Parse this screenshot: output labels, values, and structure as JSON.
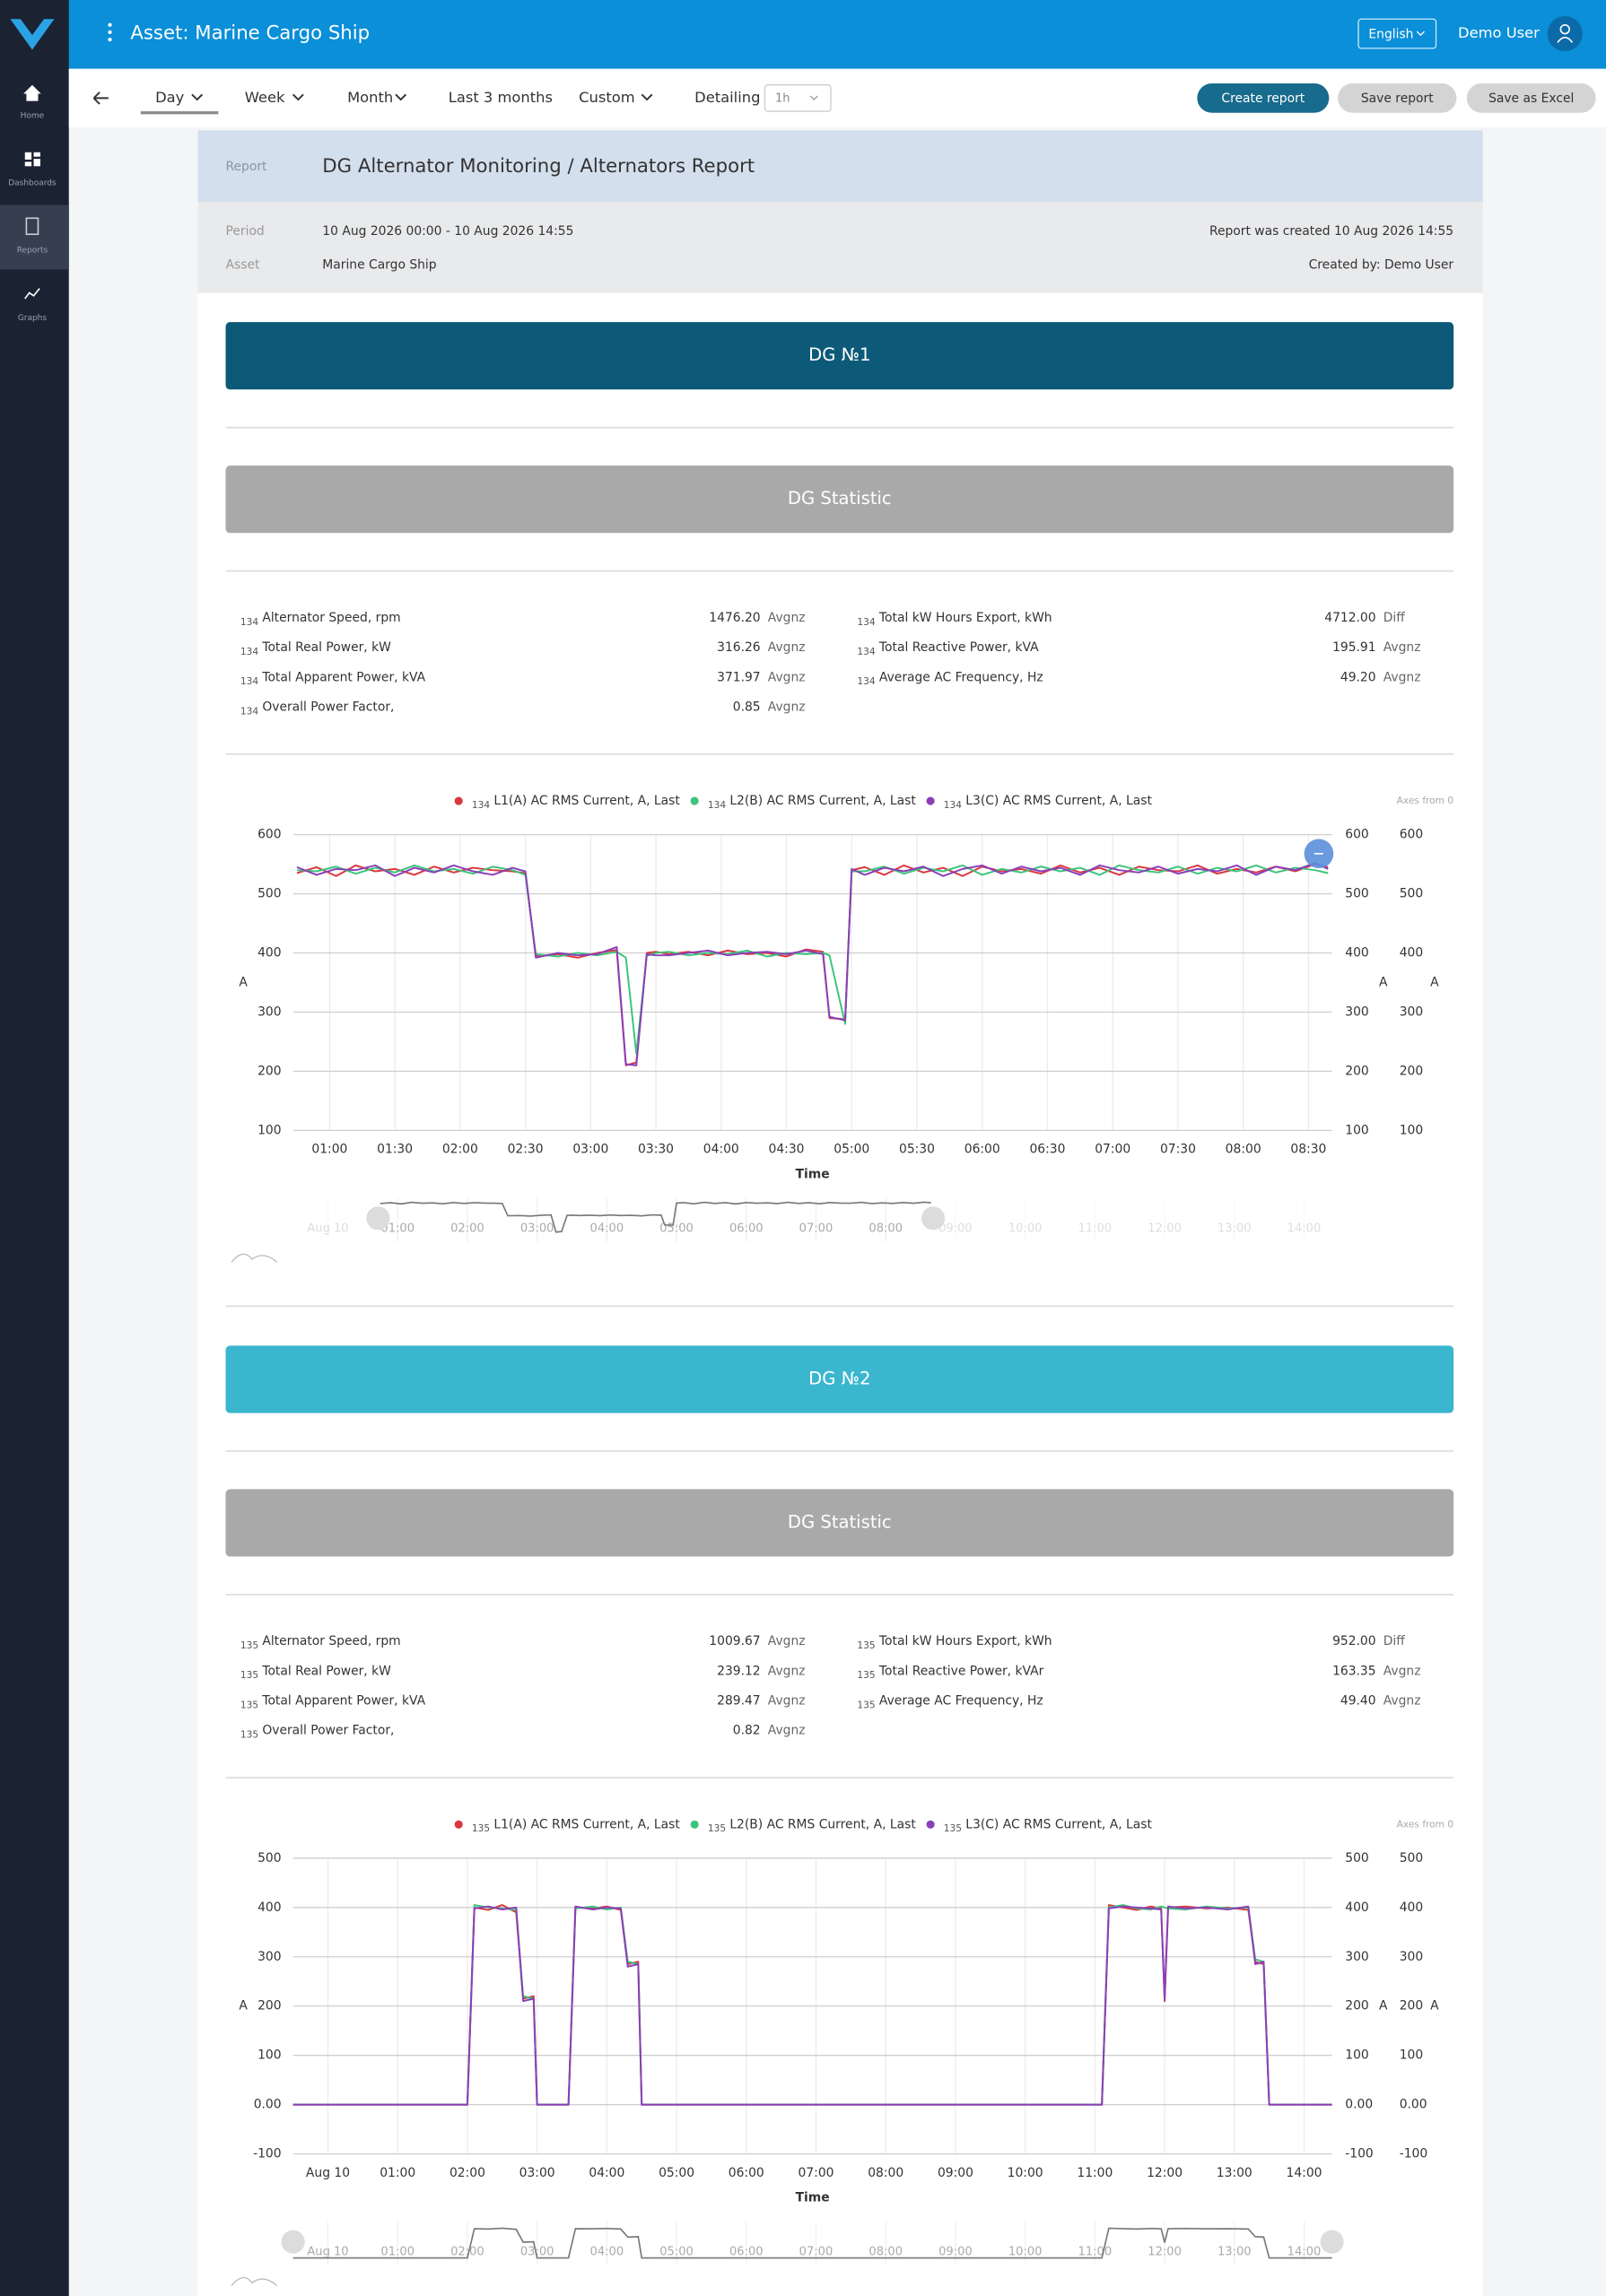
{
  "sidebar": {
    "items": [
      "Home",
      "Dashboards",
      "Reports",
      "Graphs"
    ]
  },
  "header": {
    "title": "Asset: Marine Cargo Ship",
    "language": "English",
    "user": "Demo User"
  },
  "toolbar": {
    "periods": [
      "Day",
      "Week",
      "Month",
      "Last 3 months",
      "Custom"
    ],
    "detailing_label": "Detailing",
    "detailing_value": "1h",
    "buttons": [
      "Create report",
      "Save report",
      "Save as Excel"
    ]
  },
  "report": {
    "label": "Report",
    "title": "DG Alternator Monitoring / Alternators Report",
    "period_label": "Period",
    "period": "10 Aug 2026 00:00 - 10 Aug 2026 14:55",
    "asset_label": "Asset",
    "asset": "Marine Cargo Ship",
    "created": "Report was created 10 Aug 2026 14:55",
    "created_by": "Created by: Demo User"
  },
  "sections": [
    {
      "title": "DG №1",
      "statistic_title": "DG Statistic",
      "prefix": "134",
      "stats": [
        [
          {
            "name": "Alternator Speed, rpm",
            "value": "1476.20",
            "agg": "Avgnz"
          },
          {
            "name": "Total Real Power, kW",
            "value": "316.26",
            "agg": "Avgnz"
          },
          {
            "name": "Total Apparent Power, kVA",
            "value": "371.97",
            "agg": "Avgnz"
          },
          {
            "name": "Overall Power Factor,",
            "value": "0.85",
            "agg": "Avgnz"
          }
        ],
        [
          {
            "name": "Total kW Hours Export, kWh",
            "value": "4712.00",
            "agg": "Diff"
          },
          {
            "name": "Total Reactive Power, kVA",
            "value": "195.91",
            "agg": "Avgnz"
          },
          {
            "name": "Average AC Frequency, Hz",
            "value": "49.20",
            "agg": "Avgnz"
          }
        ]
      ]
    },
    {
      "title": "DG №2",
      "statistic_title": "DG Statistic",
      "prefix": "135",
      "stats": [
        [
          {
            "name": "Alternator Speed, rpm",
            "value": "1009.67",
            "agg": "Avgnz"
          },
          {
            "name": "Total Real Power, kW",
            "value": "239.12",
            "agg": "Avgnz"
          },
          {
            "name": "Total Apparent Power, kVA",
            "value": "289.47",
            "agg": "Avgnz"
          },
          {
            "name": "Overall Power Factor,",
            "value": "0.82",
            "agg": "Avgnz"
          }
        ],
        [
          {
            "name": "Total kW Hours Export, kWh",
            "value": "952.00",
            "agg": "Diff"
          },
          {
            "name": "Total Reactive Power, kVAr",
            "value": "163.35",
            "agg": "Avgnz"
          },
          {
            "name": "Average AC Frequency, Hz",
            "value": "49.40",
            "agg": "Avgnz"
          }
        ]
      ]
    }
  ],
  "chart_data": [
    {
      "type": "line",
      "legend_prefix": "134",
      "note": "Axes from 0",
      "x_label": "Time",
      "y_label": "A",
      "y2_label": "A",
      "y3_label": "A",
      "xlim": [
        0.72,
        8.68
      ],
      "ylim": [
        100,
        600
      ],
      "yticks": [
        100,
        200,
        300,
        400,
        500,
        600
      ],
      "xticks": [
        {
          "value": 1,
          "label": "01:00"
        },
        {
          "value": 1.5,
          "label": "01:30"
        },
        {
          "value": 2,
          "label": "02:00"
        },
        {
          "value": 2.5,
          "label": "02:30"
        },
        {
          "value": 3,
          "label": "03:00"
        },
        {
          "value": 3.5,
          "label": "03:30"
        },
        {
          "value": 4,
          "label": "04:00"
        },
        {
          "value": 4.5,
          "label": "04:30"
        },
        {
          "value": 5,
          "label": "05:00"
        },
        {
          "value": 5.5,
          "label": "05:30"
        },
        {
          "value": 6,
          "label": "06:00"
        },
        {
          "value": 6.5,
          "label": "06:30"
        },
        {
          "value": 7,
          "label": "07:00"
        },
        {
          "value": 7.5,
          "label": "07:30"
        },
        {
          "value": 8,
          "label": "08:00"
        },
        {
          "value": 8.5,
          "label": "08:30"
        }
      ],
      "x": [
        0.75,
        0.9,
        1.05,
        1.2,
        1.35,
        1.5,
        1.65,
        1.8,
        1.95,
        2.1,
        2.25,
        2.4,
        2.5,
        2.58,
        2.75,
        2.9,
        3.05,
        3.2,
        3.27,
        3.35,
        3.43,
        3.5,
        3.6,
        3.75,
        3.9,
        4.05,
        4.2,
        4.35,
        4.5,
        4.65,
        4.78,
        4.83,
        4.95,
        5.0,
        5.1,
        5.25,
        5.4,
        5.55,
        5.7,
        5.85,
        6.0,
        6.15,
        6.3,
        6.45,
        6.6,
        6.75,
        6.9,
        7.05,
        7.2,
        7.35,
        7.5,
        7.65,
        7.8,
        7.95,
        8.1,
        8.25,
        8.4,
        8.55,
        8.65
      ],
      "series": [
        {
          "name": "L1(A) AC RMS Current, A, Last",
          "color": "#d9383f",
          "values": [
            535,
            545,
            530,
            548,
            538,
            542,
            532,
            546,
            536,
            544,
            540,
            538,
            535,
            395,
            398,
            392,
            400,
            405,
            210,
            215,
            400,
            402,
            398,
            402,
            396,
            404,
            398,
            400,
            394,
            406,
            402,
            290,
            288,
            540,
            545,
            532,
            548,
            536,
            544,
            530,
            546,
            538,
            542,
            534,
            548,
            536,
            544,
            532,
            546,
            540,
            538,
            548,
            534,
            542,
            536,
            546,
            538,
            550,
            545
          ]
        },
        {
          "name": "L2(B) AC RMS Current, A, Last",
          "color": "#3cc47c",
          "values": [
            540,
            538,
            546,
            534,
            544,
            536,
            548,
            538,
            542,
            534,
            546,
            540,
            532,
            398,
            394,
            400,
            396,
            402,
            392,
            230,
            395,
            400,
            402,
            396,
            400,
            398,
            404,
            394,
            400,
            398,
            400,
            396,
            280,
            538,
            538,
            546,
            534,
            544,
            538,
            548,
            532,
            542,
            536,
            546,
            538,
            544,
            532,
            548,
            540,
            536,
            546,
            534,
            544,
            538,
            548,
            536,
            544,
            540,
            535
          ]
        },
        {
          "name": "L3(C) AC RMS Current, A, Last",
          "color": "#8a3fb8",
          "values": [
            545,
            532,
            542,
            540,
            548,
            530,
            544,
            536,
            548,
            538,
            532,
            544,
            538,
            392,
            400,
            396,
            398,
            410,
            212,
            210,
            398,
            396,
            396,
            400,
            404,
            396,
            400,
            402,
            398,
            404,
            398,
            292,
            286,
            542,
            532,
            544,
            538,
            546,
            530,
            542,
            548,
            534,
            546,
            538,
            544,
            532,
            548,
            540,
            536,
            546,
            534,
            542,
            538,
            548,
            532,
            546,
            540,
            552,
            542
          ]
        }
      ],
      "navigator": {
        "xlim": [
          -0.5,
          14.4
        ],
        "xticks": [
          {
            "value": 0,
            "label": "Aug 10"
          },
          {
            "value": 1,
            "label": "01:00"
          },
          {
            "value": 2,
            "label": "02:00"
          },
          {
            "value": 3,
            "label": "03:00"
          },
          {
            "value": 4,
            "label": "04:00"
          },
          {
            "value": 5,
            "label": "05:00"
          },
          {
            "value": 6,
            "label": "06:00"
          },
          {
            "value": 7,
            "label": "07:00"
          },
          {
            "value": 8,
            "label": "08:00"
          },
          {
            "value": 9,
            "label": "09:00"
          },
          {
            "value": 10,
            "label": "10:00"
          },
          {
            "value": 11,
            "label": "11:00"
          },
          {
            "value": 12,
            "label": "12:00"
          },
          {
            "value": 13,
            "label": "13:00"
          },
          {
            "value": 14,
            "label": "14:00"
          }
        ]
      }
    },
    {
      "type": "line",
      "legend_prefix": "135",
      "note": "Axes from 0",
      "x_label": "Time",
      "y_label": "A",
      "y2_label": "A",
      "y3_label": "A",
      "xlim": [
        -0.5,
        14.4
      ],
      "ylim": [
        -100,
        500
      ],
      "yticks": [
        -100,
        {
          "value": 0,
          "label": "0.00"
        },
        100,
        200,
        300,
        400,
        500
      ],
      "xticks": [
        {
          "value": 0,
          "label": "Aug 10"
        },
        {
          "value": 1,
          "label": "01:00"
        },
        {
          "value": 2,
          "label": "02:00"
        },
        {
          "value": 3,
          "label": "03:00"
        },
        {
          "value": 4,
          "label": "04:00"
        },
        {
          "value": 5,
          "label": "05:00"
        },
        {
          "value": 6,
          "label": "06:00"
        },
        {
          "value": 7,
          "label": "07:00"
        },
        {
          "value": 8,
          "label": "08:00"
        },
        {
          "value": 9,
          "label": "09:00"
        },
        {
          "value": 10,
          "label": "10:00"
        },
        {
          "value": 11,
          "label": "11:00"
        },
        {
          "value": 12,
          "label": "12:00"
        },
        {
          "value": 13,
          "label": "13:00"
        },
        {
          "value": 14,
          "label": "14:00"
        }
      ],
      "x": [
        -0.5,
        2.0,
        2.1,
        2.3,
        2.5,
        2.7,
        2.8,
        2.95,
        3.0,
        3.45,
        3.55,
        3.8,
        4.0,
        4.2,
        4.3,
        4.45,
        4.5,
        11.1,
        11.2,
        11.4,
        11.6,
        11.8,
        11.95,
        12.0,
        12.05,
        12.3,
        12.6,
        12.9,
        13.2,
        13.3,
        13.42,
        13.5,
        14.4
      ],
      "series": [
        {
          "name": "L1(A) AC RMS Current, A, Last",
          "color": "#d9383f",
          "values": [
            0,
            0,
            400,
            395,
            405,
            390,
            215,
            220,
            0,
            0,
            400,
            398,
            402,
            395,
            285,
            290,
            0,
            0,
            405,
            400,
            395,
            402,
            398,
            210,
            400,
            402,
            398,
            400,
            395,
            290,
            285,
            0,
            0
          ]
        },
        {
          "name": "L2(B) AC RMS Current, A, Last",
          "color": "#3cc47c",
          "values": [
            0,
            0,
            405,
            400,
            398,
            395,
            220,
            215,
            0,
            0,
            398,
            402,
            396,
            400,
            290,
            285,
            0,
            0,
            400,
            405,
            398,
            396,
            402,
            400,
            398,
            396,
            402,
            398,
            400,
            295,
            290,
            0,
            0
          ]
        },
        {
          "name": "L3(C) AC RMS Current, A, Last",
          "color": "#8a3fb8",
          "values": [
            0,
            0,
            398,
            402,
            396,
            400,
            210,
            215,
            0,
            0,
            402,
            396,
            400,
            398,
            280,
            285,
            0,
            0,
            398,
            402,
            400,
            398,
            396,
            215,
            402,
            398,
            400,
            396,
            402,
            285,
            290,
            0,
            0
          ]
        }
      ],
      "navigator": {
        "xlim": [
          -0.5,
          14.4
        ],
        "xticks": [
          {
            "value": 0,
            "label": "Aug 10"
          },
          {
            "value": 1,
            "label": "01:00"
          },
          {
            "value": 2,
            "label": "02:00"
          },
          {
            "value": 3,
            "label": "03:00"
          },
          {
            "value": 4,
            "label": "04:00"
          },
          {
            "value": 5,
            "label": "05:00"
          },
          {
            "value": 6,
            "label": "06:00"
          },
          {
            "value": 7,
            "label": "07:00"
          },
          {
            "value": 8,
            "label": "08:00"
          },
          {
            "value": 9,
            "label": "09:00"
          },
          {
            "value": 10,
            "label": "10:00"
          },
          {
            "value": 11,
            "label": "11:00"
          },
          {
            "value": 12,
            "label": "12:00"
          },
          {
            "value": 13,
            "label": "13:00"
          },
          {
            "value": 14,
            "label": "14:00"
          }
        ]
      }
    }
  ]
}
